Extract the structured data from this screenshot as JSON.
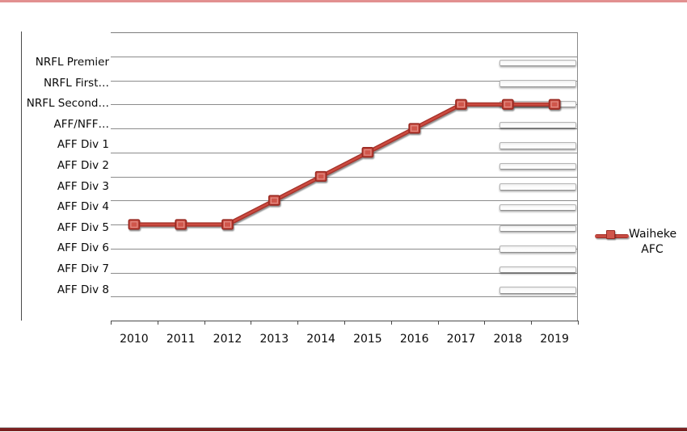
{
  "colors": {
    "accent_red": "#c0443a",
    "line_edge_red": "#a5322a",
    "line_core_red": "#cc4b41",
    "marker_fill": "#d0564c",
    "marker_border": "#9a2b24",
    "marker_highlight": "#e9a19a",
    "top_border": "#e29090",
    "bottom_border": "#7a2020",
    "gridline": "#8c8c8c"
  },
  "legend": {
    "lines": [
      "Waiheke",
      "AFC"
    ],
    "entry": "Waiheke AFC",
    "position": "right"
  },
  "chart_data": {
    "type": "line",
    "title": "",
    "xlabel": "",
    "ylabel": "",
    "x_categories": [
      "2010",
      "2011",
      "2012",
      "2013",
      "2014",
      "2015",
      "2016",
      "2017",
      "2018",
      "2019"
    ],
    "y_categories_top_to_bottom": [
      "NRFL Premier",
      "NRFL First…",
      "NRFL Second…",
      "AFF/NFF…",
      "AFF Div 1",
      "AFF Div 2",
      "AFF Div 3",
      "AFF Div 4",
      "AFF Div 5",
      "AFF Div 6",
      "AFF Div 7",
      "AFF Div 8"
    ],
    "ylim_levels": [
      0,
      12
    ],
    "grid": "horizontal",
    "legend_position": "right",
    "series": [
      {
        "name": "Waiheke AFC",
        "color": "#c0443a",
        "marker": "square",
        "values_level": [
          4,
          4,
          4,
          5,
          6,
          7,
          8,
          9,
          9,
          9
        ],
        "values_league": [
          "AFF Div 5",
          "AFF Div 5",
          "AFF Div 5",
          "AFF Div 4",
          "AFF Div 3",
          "AFF Div 2",
          "AFF Div 1",
          "AFF/NFF…",
          "AFF/NFF…",
          "AFF/NFF…"
        ]
      }
    ]
  }
}
